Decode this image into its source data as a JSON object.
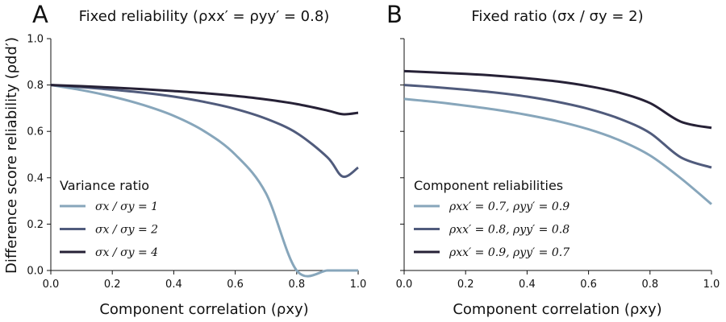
{
  "colors": {
    "light": "#87a6bb",
    "mid": "#505b7c",
    "dark": "#262136"
  },
  "chart_data": [
    {
      "type": "line",
      "letter": "A",
      "title": "Fixed reliability (ρxx′ = ρyy′ = 0.8)",
      "xlabel": "Component correlation (ρxy)",
      "ylabel": "Difference score reliability (ρdd′)",
      "xlim": [
        0,
        1
      ],
      "ylim": [
        0,
        1
      ],
      "xticks": [
        "0.0",
        "0.2",
        "0.4",
        "0.6",
        "0.8",
        "1.0"
      ],
      "yticks": [
        "0.0",
        "0.2",
        "0.4",
        "0.6",
        "0.8",
        "1.0"
      ],
      "legend_title": "Variance ratio",
      "legend_position": "lower-left",
      "grid": false,
      "x": [
        0,
        0.1,
        0.2,
        0.3,
        0.4,
        0.5,
        0.6,
        0.7,
        0.8,
        0.9,
        0.95,
        1.0
      ],
      "series": [
        {
          "name": "σx / σy = 1",
          "color": "light",
          "values": [
            0.8,
            0.778,
            0.75,
            0.714,
            0.667,
            0.6,
            0.5,
            0.333,
            0.0,
            0.0,
            0.0,
            0.0
          ]
        },
        {
          "name": "σx / σy = 2",
          "color": "mid",
          "values": [
            0.8,
            0.791,
            0.78,
            0.767,
            0.75,
            0.727,
            0.697,
            0.655,
            0.593,
            0.488,
            0.405,
            0.444
          ]
        },
        {
          "name": "σx / σy = 4",
          "color": "dark",
          "values": [
            0.8,
            0.795,
            0.789,
            0.782,
            0.774,
            0.765,
            0.753,
            0.738,
            0.718,
            0.69,
            0.674,
            0.68
          ]
        }
      ]
    },
    {
      "type": "line",
      "letter": "B",
      "title": "Fixed ratio (σx / σy = 2)",
      "xlabel": "Component correlation (ρxy)",
      "ylabel": "",
      "xlim": [
        0,
        1
      ],
      "ylim": [
        0,
        1
      ],
      "xticks": [
        "0.0",
        "0.2",
        "0.4",
        "0.6",
        "0.8",
        "1.0"
      ],
      "yticks": [
        "0.0",
        "0.2",
        "0.4",
        "0.6",
        "0.8",
        "1.0"
      ],
      "legend_title": "Component reliabilities",
      "legend_position": "lower-left",
      "grid": false,
      "x": [
        0,
        0.1,
        0.2,
        0.3,
        0.4,
        0.5,
        0.6,
        0.7,
        0.8,
        0.9,
        1.0
      ],
      "series": [
        {
          "name": "ρxx′ = 0.7, ρyy′ = 0.9",
          "color": "light",
          "values": [
            0.74,
            0.727,
            0.711,
            0.693,
            0.671,
            0.644,
            0.609,
            0.562,
            0.496,
            0.398,
            0.286
          ]
        },
        {
          "name": "ρxx′ = 0.8, ρyy′ = 0.8",
          "color": "mid",
          "values": [
            0.8,
            0.791,
            0.78,
            0.767,
            0.75,
            0.727,
            0.697,
            0.655,
            0.593,
            0.488,
            0.444
          ]
        },
        {
          "name": "ρxx′ = 0.9, ρyy′ = 0.7",
          "color": "dark",
          "values": [
            0.86,
            0.854,
            0.848,
            0.84,
            0.829,
            0.815,
            0.795,
            0.767,
            0.722,
            0.642,
            0.615
          ]
        }
      ]
    }
  ]
}
